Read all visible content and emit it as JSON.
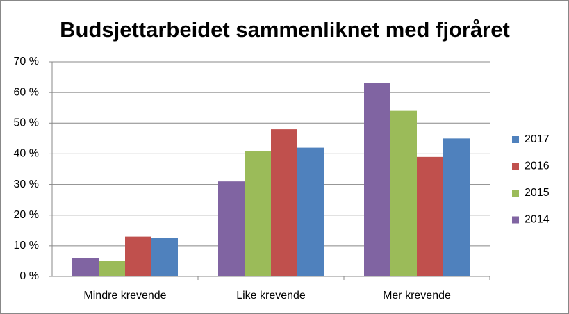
{
  "chart_data": {
    "type": "bar",
    "title": "Budsjettarbeidet sammenliknet med fjoråret",
    "categories": [
      "Mindre krevende",
      "Like krevende",
      "Mer krevende"
    ],
    "series": [
      {
        "name": "2014",
        "color": "#8064a2",
        "values": [
          6,
          31,
          63
        ]
      },
      {
        "name": "2015",
        "color": "#9bbb59",
        "values": [
          5,
          41,
          54
        ]
      },
      {
        "name": "2016",
        "color": "#c0504d",
        "values": [
          13,
          48,
          39
        ]
      },
      {
        "name": "2017",
        "color": "#4f81bd",
        "values": [
          12.5,
          42,
          45
        ]
      }
    ],
    "ylim": [
      0,
      70
    ],
    "yticks": [
      {
        "value": 0,
        "label": "0 %"
      },
      {
        "value": 10,
        "label": "10 %"
      },
      {
        "value": 20,
        "label": "20 %"
      },
      {
        "value": 30,
        "label": "30 %"
      },
      {
        "value": 40,
        "label": "40 %"
      },
      {
        "value": 50,
        "label": "50 %"
      },
      {
        "value": 60,
        "label": "60 %"
      },
      {
        "value": 70,
        "label": "70 %"
      }
    ],
    "grid": true,
    "legend": "right"
  }
}
